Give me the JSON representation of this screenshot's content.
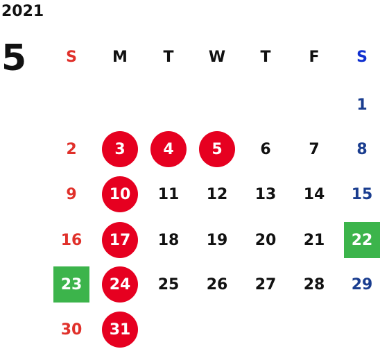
{
  "year": "2021",
  "month": "5",
  "colors": {
    "sunday": "#e0302a",
    "saturday_header": "#1030d0",
    "saturday": "#1a3d8f",
    "weekday": "#111111",
    "holiday_bg": "#e60020",
    "special_bg": "#3cb44b",
    "marked_text": "#ffffff"
  },
  "weekdays": [
    "S",
    "M",
    "T",
    "W",
    "T",
    "F",
    "S"
  ],
  "weeks": [
    [
      null,
      null,
      null,
      null,
      null,
      null,
      {
        "day": "1"
      }
    ],
    [
      {
        "day": "2"
      },
      {
        "day": "3",
        "mark": "holiday"
      },
      {
        "day": "4",
        "mark": "holiday"
      },
      {
        "day": "5",
        "mark": "holiday"
      },
      {
        "day": "6"
      },
      {
        "day": "7"
      },
      {
        "day": "8"
      }
    ],
    [
      {
        "day": "9"
      },
      {
        "day": "10",
        "mark": "holiday"
      },
      {
        "day": "11"
      },
      {
        "day": "12"
      },
      {
        "day": "13"
      },
      {
        "day": "14"
      },
      {
        "day": "15"
      }
    ],
    [
      {
        "day": "16"
      },
      {
        "day": "17",
        "mark": "holiday"
      },
      {
        "day": "18"
      },
      {
        "day": "19"
      },
      {
        "day": "20"
      },
      {
        "day": "21"
      },
      {
        "day": "22",
        "mark": "special"
      }
    ],
    [
      {
        "day": "23",
        "mark": "special"
      },
      {
        "day": "24",
        "mark": "holiday"
      },
      {
        "day": "25"
      },
      {
        "day": "26"
      },
      {
        "day": "27"
      },
      {
        "day": "28"
      },
      {
        "day": "29"
      }
    ],
    [
      {
        "day": "30"
      },
      {
        "day": "31",
        "mark": "holiday"
      },
      null,
      null,
      null,
      null,
      null
    ]
  ]
}
